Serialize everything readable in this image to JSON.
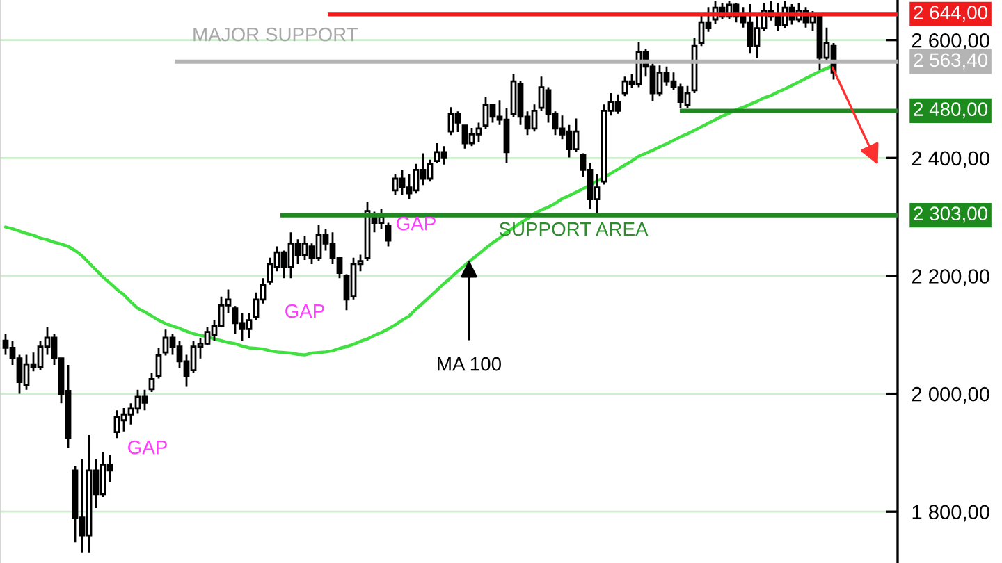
{
  "chart_data": {
    "type": "candlestick",
    "color": "#000000",
    "categories": [
      null,
      null,
      null,
      null,
      null,
      null,
      null,
      null,
      null,
      null,
      null,
      null,
      null,
      null,
      null,
      null,
      null,
      null,
      null,
      null,
      null,
      null,
      null,
      null,
      null,
      null,
      null,
      null,
      null,
      null,
      null,
      null,
      null,
      null,
      null,
      null,
      null,
      null,
      null,
      null,
      null,
      null,
      null,
      null,
      null,
      null,
      null,
      null,
      null,
      null,
      null,
      null,
      null,
      null,
      null,
      null,
      null,
      null,
      null,
      null,
      null,
      null,
      null,
      null,
      null,
      null,
      null,
      null,
      null,
      null,
      null,
      null,
      null,
      null,
      null,
      null,
      null,
      null,
      null,
      null,
      null,
      null,
      null,
      null,
      null,
      null,
      null,
      null,
      null,
      null,
      null,
      null,
      null,
      null,
      null,
      null,
      null,
      null,
      null,
      null,
      null,
      null,
      null,
      null,
      null,
      null,
      null,
      null,
      null,
      null,
      null,
      null,
      null,
      null,
      null,
      null,
      null,
      null,
      null,
      null
    ],
    "ohlc": [
      [
        2090,
        2102,
        2066,
        2078
      ],
      [
        2078,
        2090,
        2049,
        2060
      ],
      [
        2060,
        2066,
        2000,
        2020
      ],
      [
        2015,
        2066,
        2007,
        2050
      ],
      [
        2050,
        2070,
        2038,
        2045
      ],
      [
        2045,
        2090,
        2040,
        2080
      ],
      [
        2080,
        2113,
        2066,
        2095
      ],
      [
        2095,
        2102,
        2049,
        2060
      ],
      [
        2060,
        2060,
        1984,
        2000
      ],
      [
        2005,
        2049,
        1908,
        1925
      ],
      [
        1870,
        1877,
        1748,
        1790
      ],
      [
        1790,
        1889,
        1731,
        1760
      ],
      [
        1760,
        1930,
        1731,
        1870
      ],
      [
        1870,
        1889,
        1806,
        1830
      ],
      [
        1830,
        1901,
        1825,
        1880
      ],
      [
        1880,
        1897,
        1850,
        1870
      ],
      [
        1935,
        1972,
        1925,
        1960
      ],
      [
        1955,
        1976,
        1936,
        1965
      ],
      [
        1965,
        1984,
        1948,
        1975
      ],
      [
        1975,
        2007,
        1967,
        1995
      ],
      [
        1995,
        2007,
        1972,
        1985
      ],
      [
        2008,
        2036,
        2003,
        2025
      ],
      [
        2030,
        2078,
        2026,
        2065
      ],
      [
        2070,
        2109,
        2065,
        2095
      ],
      [
        2095,
        2102,
        2066,
        2080
      ],
      [
        2080,
        2090,
        2043,
        2055
      ],
      [
        2055,
        2066,
        2012,
        2030
      ],
      [
        2040,
        2090,
        2035,
        2080
      ],
      [
        2080,
        2094,
        2060,
        2085
      ],
      [
        2085,
        2113,
        2083,
        2105
      ],
      [
        2100,
        2125,
        2090,
        2115
      ],
      [
        2115,
        2165,
        2113,
        2150
      ],
      [
        2150,
        2177,
        2137,
        2160
      ],
      [
        2145,
        2149,
        2102,
        2120
      ],
      [
        2120,
        2137,
        2090,
        2110
      ],
      [
        2110,
        2137,
        2094,
        2125
      ],
      [
        2130,
        2172,
        2125,
        2160
      ],
      [
        2160,
        2196,
        2153,
        2185
      ],
      [
        2190,
        2231,
        2185,
        2220
      ],
      [
        2215,
        2250,
        2208,
        2240
      ],
      [
        2240,
        2243,
        2196,
        2215
      ],
      [
        2215,
        2274,
        2196,
        2255
      ],
      [
        2255,
        2262,
        2220,
        2235
      ],
      [
        2235,
        2267,
        2227,
        2255
      ],
      [
        2250,
        2255,
        2220,
        2230
      ],
      [
        2230,
        2286,
        2225,
        2270
      ],
      [
        2270,
        2279,
        2243,
        2255
      ],
      [
        2255,
        2274,
        2220,
        2230
      ],
      [
        2230,
        2231,
        2196,
        2205
      ],
      [
        2200,
        2203,
        2142,
        2160
      ],
      [
        2165,
        2231,
        2160,
        2220
      ],
      [
        2220,
        2236,
        2208,
        2225
      ],
      [
        2230,
        2326,
        2225,
        2310
      ],
      [
        2305,
        2309,
        2274,
        2290
      ],
      [
        2290,
        2314,
        2279,
        2300
      ],
      [
        2285,
        2290,
        2250,
        2260
      ],
      [
        2345,
        2373,
        2338,
        2365
      ],
      [
        2365,
        2380,
        2338,
        2350
      ],
      [
        2350,
        2373,
        2330,
        2340
      ],
      [
        2345,
        2390,
        2340,
        2380
      ],
      [
        2380,
        2408,
        2354,
        2365
      ],
      [
        2365,
        2397,
        2360,
        2390
      ],
      [
        2395,
        2425,
        2392,
        2410
      ],
      [
        2410,
        2420,
        2389,
        2400
      ],
      [
        2445,
        2486,
        2439,
        2475
      ],
      [
        2475,
        2479,
        2444,
        2460
      ],
      [
        2455,
        2456,
        2416,
        2425
      ],
      [
        2425,
        2451,
        2420,
        2440
      ],
      [
        2440,
        2460,
        2427,
        2450
      ],
      [
        2455,
        2503,
        2450,
        2490
      ],
      [
        2490,
        2491,
        2460,
        2470
      ],
      [
        2470,
        2498,
        2456,
        2465
      ],
      [
        2465,
        2484,
        2392,
        2410
      ],
      [
        2475,
        2543,
        2470,
        2530
      ],
      [
        2525,
        2530,
        2456,
        2470
      ],
      [
        2470,
        2479,
        2439,
        2450
      ],
      [
        2450,
        2491,
        2445,
        2480
      ],
      [
        2485,
        2538,
        2480,
        2520
      ],
      [
        2515,
        2520,
        2460,
        2475
      ],
      [
        2475,
        2479,
        2439,
        2450
      ],
      [
        2450,
        2472,
        2432,
        2440
      ],
      [
        2445,
        2456,
        2401,
        2415
      ],
      [
        2415,
        2467,
        2410,
        2445
      ],
      [
        2405,
        2408,
        2368,
        2380
      ],
      [
        2380,
        2392,
        2314,
        2330
      ],
      [
        2330,
        2373,
        2302,
        2350
      ],
      [
        2360,
        2491,
        2355,
        2480
      ],
      [
        2480,
        2510,
        2472,
        2495
      ],
      [
        2495,
        2508,
        2475,
        2480
      ],
      [
        2510,
        2538,
        2505,
        2530
      ],
      [
        2530,
        2543,
        2519,
        2525
      ],
      [
        2525,
        2597,
        2520,
        2580
      ],
      [
        2580,
        2585,
        2538,
        2555
      ],
      [
        2555,
        2560,
        2496,
        2510
      ],
      [
        2510,
        2557,
        2505,
        2545
      ],
      [
        2545,
        2555,
        2522,
        2530
      ],
      [
        2530,
        2545,
        2515,
        2520
      ],
      [
        2520,
        2526,
        2484,
        2495
      ],
      [
        2490,
        2522,
        2484,
        2510
      ],
      [
        2515,
        2604,
        2510,
        2590
      ],
      [
        2595,
        2644,
        2590,
        2630
      ],
      [
        2630,
        2656,
        2614,
        2620
      ],
      [
        2635,
        2666,
        2628,
        2655
      ],
      [
        2655,
        2663,
        2635,
        2640
      ],
      [
        2640,
        2666,
        2636,
        2660
      ],
      [
        2660,
        2663,
        2630,
        2640
      ],
      [
        2640,
        2656,
        2621,
        2630
      ],
      [
        2630,
        2661,
        2578,
        2590
      ],
      [
        2590,
        2644,
        2569,
        2620
      ],
      [
        2620,
        2663,
        2615,
        2650
      ],
      [
        2650,
        2666,
        2633,
        2640
      ],
      [
        2640,
        2663,
        2616,
        2625
      ],
      [
        2625,
        2666,
        2620,
        2655
      ],
      [
        2655,
        2661,
        2626,
        2635
      ],
      [
        2635,
        2663,
        2630,
        2650
      ],
      [
        2650,
        2656,
        2621,
        2630
      ],
      [
        2630,
        2649,
        2616,
        2640
      ],
      [
        2640,
        2644,
        2550,
        2570
      ],
      [
        2570,
        2621,
        2562,
        2595
      ],
      [
        2590,
        2595,
        2533,
        2545
      ]
    ],
    "series": [
      {
        "name": "MA 100",
        "type": "line",
        "color": "#40e040",
        "values": [
          2283,
          2280,
          2276,
          2272,
          2269,
          2264,
          2261,
          2257,
          2254,
          2250,
          2243,
          2234,
          2222,
          2210,
          2198,
          2188,
          2177,
          2168,
          2156,
          2145,
          2139,
          2132,
          2125,
          2119,
          2115,
          2111,
          2106,
          2102,
          2099,
          2097,
          2093,
          2090,
          2087,
          2085,
          2081,
          2078,
          2077,
          2076,
          2073,
          2071,
          2070,
          2069,
          2067,
          2066,
          2069,
          2070,
          2071,
          2073,
          2077,
          2080,
          2084,
          2089,
          2093,
          2099,
          2104,
          2110,
          2117,
          2125,
          2132,
          2144,
          2154,
          2165,
          2176,
          2187,
          2197,
          2208,
          2218,
          2228,
          2237,
          2247,
          2256,
          2264,
          2274,
          2282,
          2290,
          2297,
          2306,
          2312,
          2317,
          2323,
          2331,
          2336,
          2342,
          2348,
          2354,
          2361,
          2367,
          2374,
          2381,
          2388,
          2395,
          2403,
          2408,
          2413,
          2419,
          2424,
          2430,
          2436,
          2441,
          2447,
          2453,
          2459,
          2465,
          2471,
          2476,
          2482,
          2486,
          2491,
          2496,
          2502,
          2506,
          2512,
          2517,
          2523,
          2529,
          2535,
          2541,
          2547,
          2552,
          2557
        ]
      }
    ],
    "ylim": [
      1713,
      2668
    ],
    "yticks": [
      {
        "value": 1800,
        "label": "1 800,00"
      },
      {
        "value": 2000,
        "label": "2 000,00"
      },
      {
        "value": 2200,
        "label": "2 200,00"
      },
      {
        "value": 2400,
        "label": "2 400,00"
      },
      {
        "value": 2600,
        "label": "2 600,00"
      }
    ],
    "tick_labels": "y",
    "grid": "y",
    "ref_lines": [
      {
        "axis": "y",
        "value": 2644,
        "label": "2 644,00",
        "color": "#ee1c1c"
      },
      {
        "axis": "y",
        "value": 2563.4,
        "label": "2 563,40",
        "color": "#b4b4b4"
      },
      {
        "axis": "y",
        "value": 2480,
        "label": "2 480,00",
        "color": "#1c8a1c"
      },
      {
        "axis": "y",
        "value": 2303,
        "label": "2 303,00",
        "color": "#1c8a1c"
      }
    ],
    "annotations": [
      "MAJOR SUPPORT",
      "GAP",
      "GAP",
      "GAP",
      "SUPPORT AREA"
    ]
  }
}
